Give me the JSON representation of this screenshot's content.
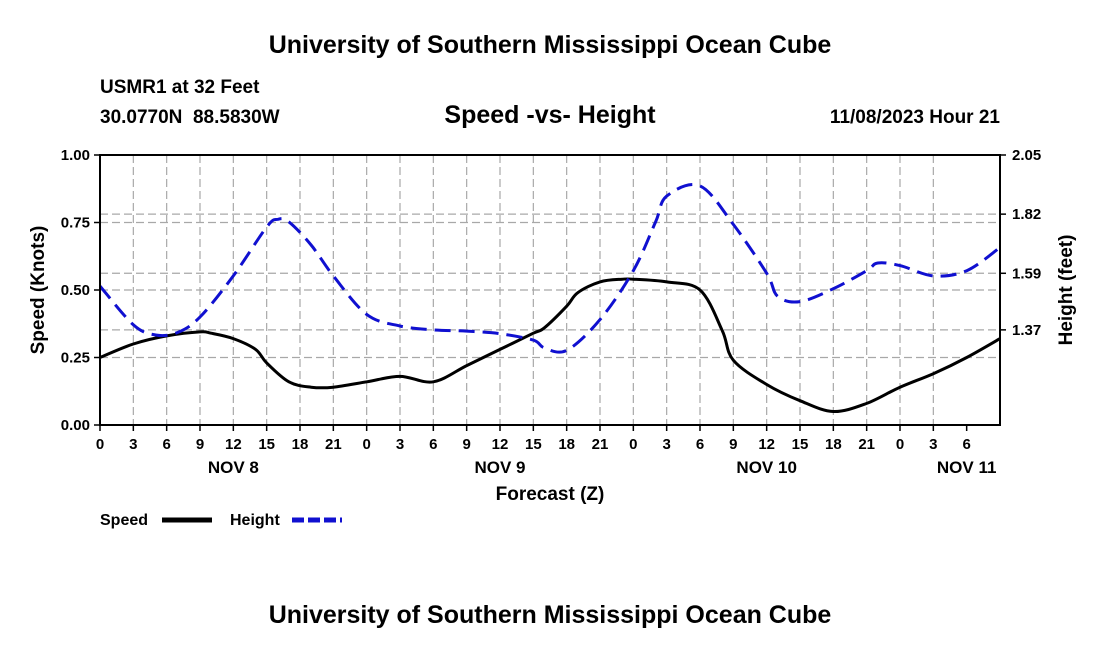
{
  "header": {
    "title": "University of Southern Mississippi Ocean Cube",
    "station": "USMR1 at 32 Feet",
    "coords": "30.0770N  88.5830W",
    "subtitle": "Speed -vs- Height",
    "datetime": "11/08/2023 Hour 21",
    "footer_title": "University of Southern Mississippi Ocean Cube"
  },
  "legend": {
    "speed_label": "Speed",
    "height_label": "Height"
  },
  "colors": {
    "speed": "#000000",
    "height": "#1010d0",
    "grid": "#a8a8a8"
  },
  "chart_data": {
    "type": "line",
    "title": "Speed -vs- Height",
    "xlabel": "Forecast (Z)",
    "ylabel": "Speed (Knots)",
    "y2label": "Height (feet)",
    "x_range_hours": [
      0,
      81
    ],
    "x_tick_labels": [
      "0",
      "3",
      "6",
      "9",
      "12",
      "15",
      "18",
      "21",
      "0",
      "3",
      "6",
      "9",
      "12",
      "15",
      "18",
      "21",
      "0",
      "3",
      "6",
      "9",
      "12",
      "15",
      "18",
      "21",
      "0",
      "3",
      "6"
    ],
    "date_labels": [
      {
        "label": "NOV 8",
        "hour": 12
      },
      {
        "label": "NOV 9",
        "hour": 36
      },
      {
        "label": "NOV 10",
        "hour": 60
      },
      {
        "label": "NOV 11",
        "hour": 78
      }
    ],
    "ylim": [
      0,
      1
    ],
    "y_ticks": [
      {
        "v": 0,
        "label": "0.00"
      },
      {
        "v": 0.25,
        "label": "0.25"
      },
      {
        "v": 0.5,
        "label": "0.50"
      },
      {
        "v": 0.75,
        "label": "0.75"
      },
      {
        "v": 1,
        "label": "1.00"
      }
    ],
    "y2lim": [
      1.0,
      2.05
    ],
    "y2_ticks": [
      {
        "v": 1.37,
        "label": "1.37"
      },
      {
        "v": 1.59,
        "label": "1.59"
      },
      {
        "v": 1.82,
        "label": "1.82"
      },
      {
        "v": 2.05,
        "label": "2.05"
      }
    ],
    "series": [
      {
        "name": "Speed",
        "axis": "left",
        "style": "solid",
        "x": [
          0,
          3,
          6,
          9,
          10,
          12,
          14,
          15,
          17,
          19,
          21,
          24,
          27,
          30,
          33,
          36,
          39,
          40,
          42,
          43,
          45,
          47,
          48,
          51,
          54,
          56,
          57,
          60,
          63,
          66,
          69,
          72,
          75,
          78,
          81
        ],
        "values": [
          0.25,
          0.3,
          0.33,
          0.345,
          0.34,
          0.32,
          0.28,
          0.23,
          0.16,
          0.14,
          0.14,
          0.16,
          0.18,
          0.16,
          0.22,
          0.28,
          0.34,
          0.36,
          0.44,
          0.49,
          0.53,
          0.54,
          0.54,
          0.53,
          0.5,
          0.35,
          0.24,
          0.15,
          0.09,
          0.05,
          0.08,
          0.14,
          0.19,
          0.25,
          0.32
        ]
      },
      {
        "name": "Height",
        "axis": "right",
        "style": "dashed",
        "x": [
          0,
          3,
          5,
          7,
          9,
          12,
          15,
          16,
          17,
          19,
          21,
          24,
          27,
          30,
          33,
          36,
          39,
          40,
          42,
          45,
          48,
          50,
          51,
          54,
          57,
          60,
          61,
          63,
          66,
          69,
          70,
          72,
          75,
          78,
          81
        ],
        "values": [
          1.54,
          1.39,
          1.35,
          1.36,
          1.42,
          1.58,
          1.77,
          1.8,
          1.79,
          1.7,
          1.58,
          1.43,
          1.385,
          1.37,
          1.365,
          1.355,
          1.33,
          1.3,
          1.29,
          1.41,
          1.6,
          1.79,
          1.89,
          1.93,
          1.78,
          1.59,
          1.5,
          1.48,
          1.53,
          1.6,
          1.63,
          1.62,
          1.58,
          1.6,
          1.69
        ]
      }
    ]
  }
}
